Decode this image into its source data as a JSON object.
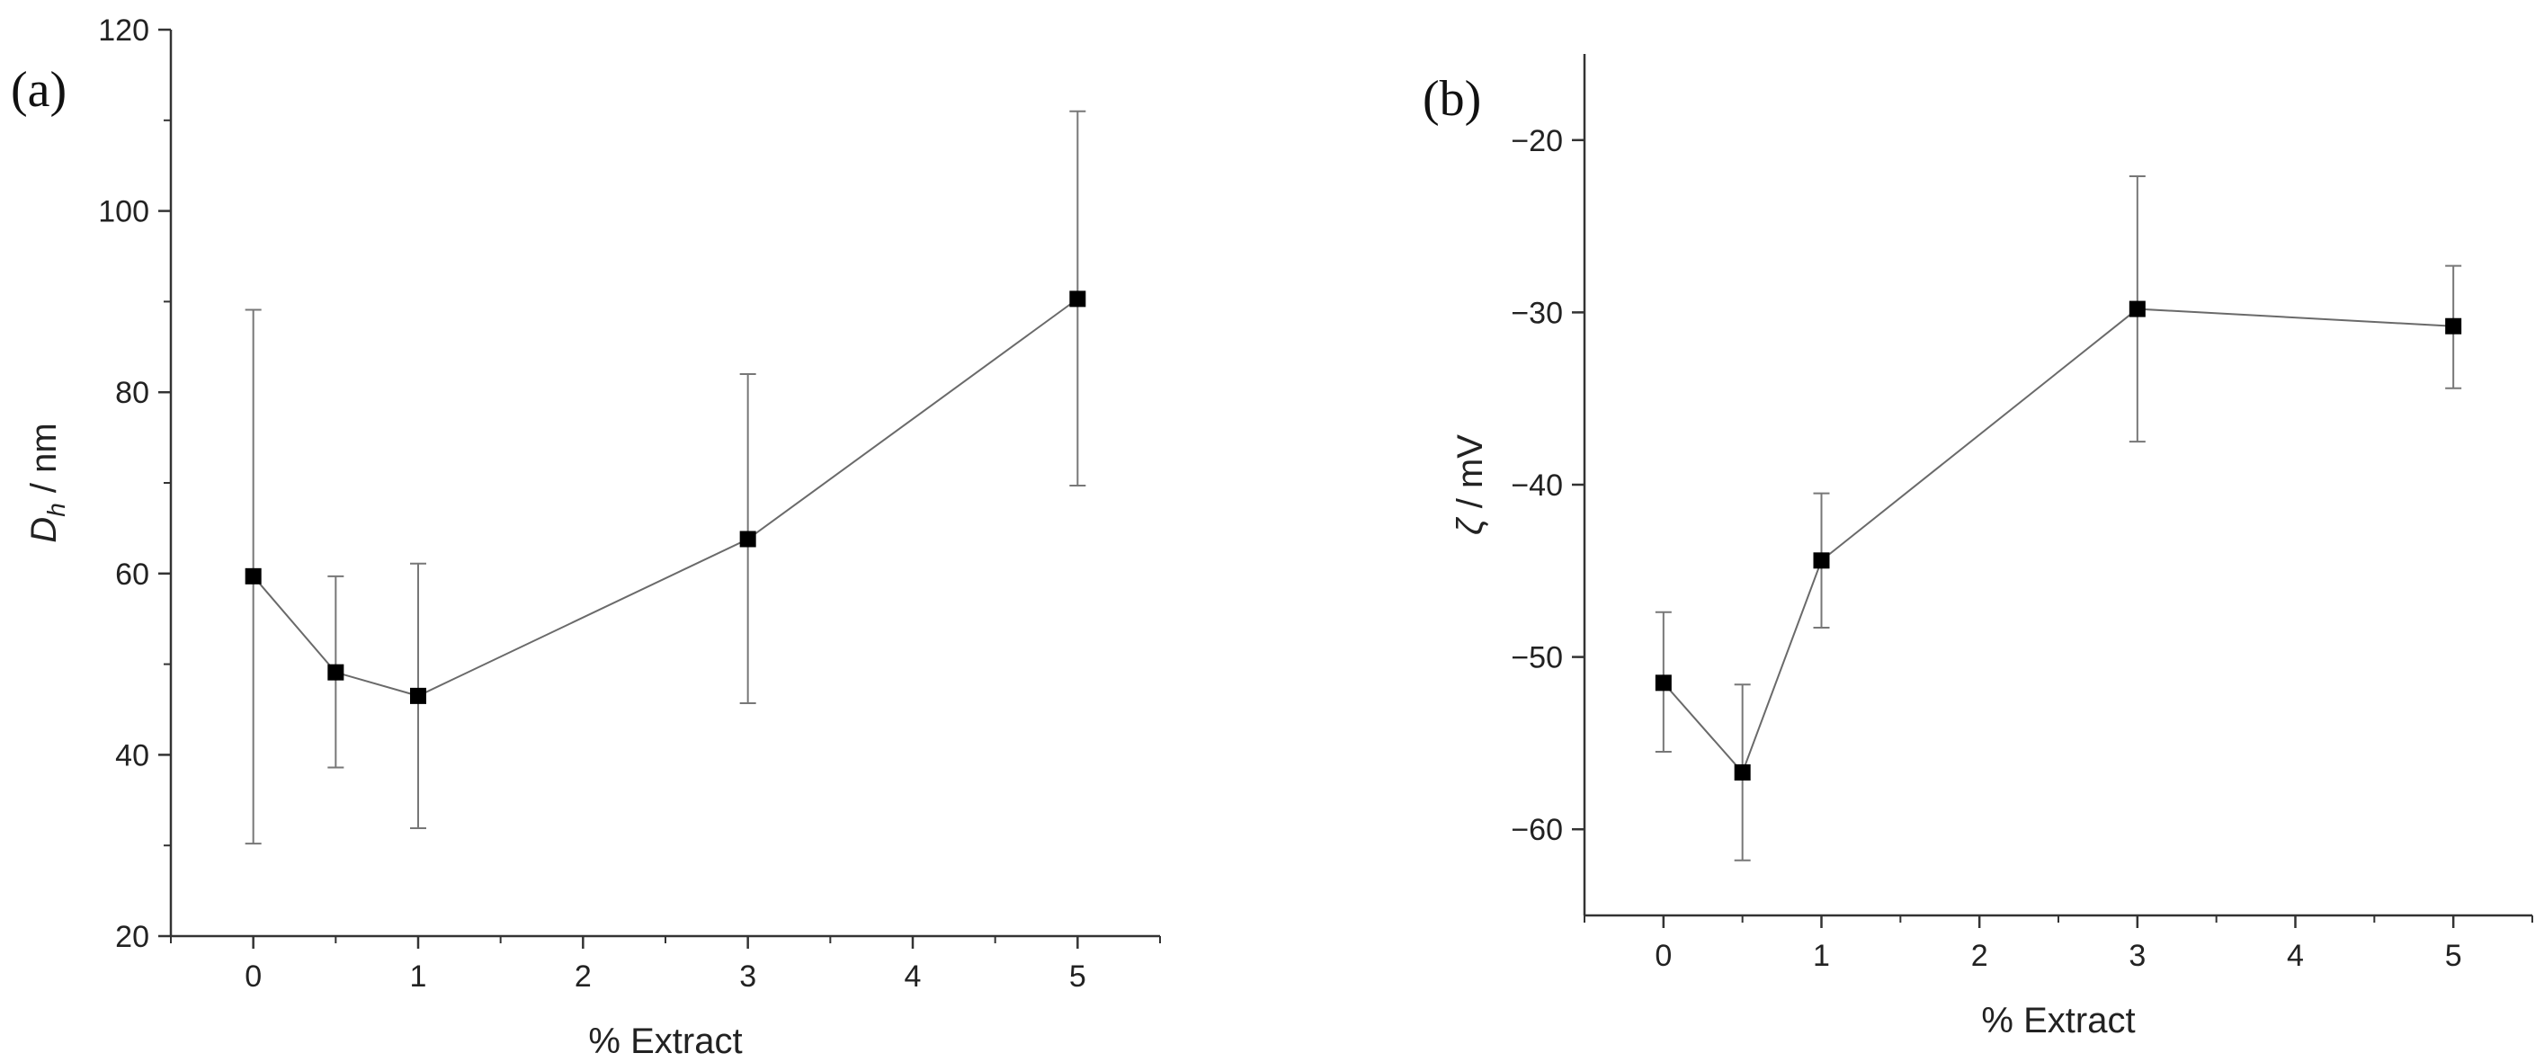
{
  "chart_data": [
    {
      "panel_label": "(a)",
      "type": "line",
      "xlabel": "% Extract",
      "ylabel_symbol": "D",
      "ylabel_sub": "h",
      "ylabel_rest": " / nm",
      "xlim": [
        -0.5,
        5.5
      ],
      "ylim": [
        20,
        120
      ],
      "xticks": [
        0,
        1,
        2,
        3,
        4,
        5
      ],
      "yticks": [
        20,
        40,
        60,
        80,
        100,
        120
      ],
      "grid": false,
      "series": [
        {
          "x": [
            0,
            0.5,
            1,
            3,
            5
          ],
          "y": [
            59.7,
            49.1,
            46.5,
            63.8,
            90.3
          ],
          "y_lower": [
            30.2,
            38.6,
            31.9,
            45.7,
            69.7
          ],
          "y_upper": [
            89.1,
            59.7,
            61.1,
            82.0,
            111.0
          ]
        }
      ]
    },
    {
      "panel_label": "(b)",
      "type": "line",
      "xlabel": "% Extract",
      "ylabel_symbol": "ζ",
      "ylabel_sub": "",
      "ylabel_rest": " / mV",
      "xlim": [
        -0.5,
        5.5
      ],
      "ylim": [
        -65,
        -15
      ],
      "xticks": [
        0,
        1,
        2,
        3,
        4,
        5
      ],
      "yticks": [
        -60,
        -50,
        -40,
        -30,
        -20
      ],
      "ytick_labels": [
        "−60",
        "−50",
        "−40",
        "−30",
        "−20"
      ],
      "grid": false,
      "series": [
        {
          "x": [
            0,
            0.5,
            1,
            3,
            5
          ],
          "y": [
            -51.5,
            -56.7,
            -44.4,
            -29.8,
            -30.8
          ],
          "y_lower": [
            -55.5,
            -61.8,
            -48.3,
            -37.5,
            -34.4
          ],
          "y_upper": [
            -47.4,
            -51.6,
            -40.5,
            -22.1,
            -27.3
          ]
        }
      ]
    }
  ]
}
